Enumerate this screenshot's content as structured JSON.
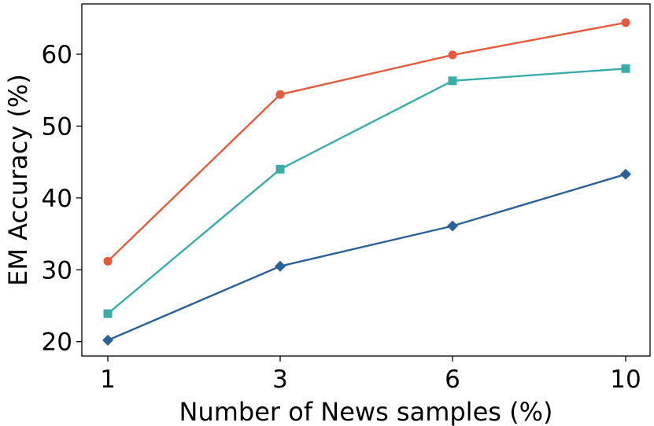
{
  "chart_data": {
    "type": "line",
    "xlabel": "Number of News samples (%)",
    "ylabel": "EM Accuracy (%)",
    "x": [
      1,
      3,
      6,
      10
    ],
    "x_tick_labels": [
      "1",
      "3",
      "6",
      "10"
    ],
    "y_ticks": [
      20,
      30,
      40,
      50,
      60
    ],
    "y_tick_labels": [
      "20",
      "30",
      "40",
      "50",
      "60"
    ],
    "ylim": [
      18,
      67
    ],
    "grid": false,
    "series": [
      {
        "marker": "circle",
        "color": "#e8593c",
        "values": [
          31.2,
          54.4,
          59.9,
          64.4
        ]
      },
      {
        "marker": "square",
        "color": "#3aada8",
        "values": [
          23.9,
          44.0,
          56.3,
          58.0
        ]
      },
      {
        "marker": "diamond",
        "color": "#2a6199",
        "values": [
          20.2,
          30.5,
          36.1,
          43.3
        ]
      }
    ]
  }
}
